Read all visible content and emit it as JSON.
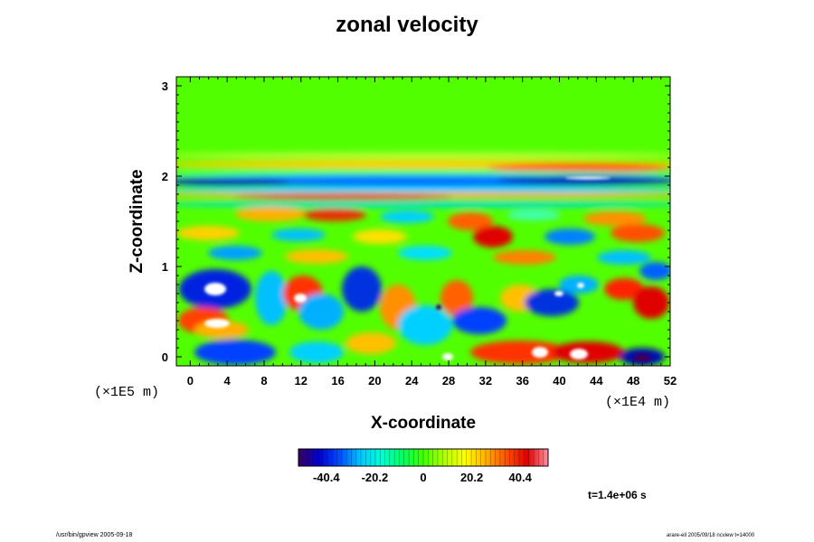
{
  "chart_data": {
    "type": "heatmap",
    "title": "zonal velocity",
    "xlabel": "X-coordinate",
    "ylabel": "Z-coordinate",
    "x_scale_note": "(×1E4 m)",
    "z_scale_note": "(×1E5 m)",
    "xlim": [
      -1.5,
      52
    ],
    "ylim": [
      -0.1,
      3.1
    ],
    "x_ticks": [
      "0",
      "4",
      "8",
      "12",
      "16",
      "20",
      "24",
      "28",
      "32",
      "36",
      "40",
      "44",
      "48",
      "52"
    ],
    "x_tick_values": [
      0,
      4,
      8,
      12,
      16,
      20,
      24,
      28,
      32,
      36,
      40,
      44,
      48,
      52
    ],
    "y_ticks": [
      "0",
      "1",
      "2",
      "3"
    ],
    "y_tick_values": [
      0,
      1,
      2,
      3
    ],
    "colorbar": {
      "range": [
        -52,
        52
      ],
      "tick_labels": [
        "-40.4",
        "-20.2",
        "0",
        "20.2",
        "40.4"
      ],
      "tick_values": [
        -40.4,
        -20.2,
        0,
        20.2,
        40.4
      ],
      "colors": [
        "#3a0060",
        "#0000d0",
        "#0050ff",
        "#00c8ff",
        "#00ffd0",
        "#00ff60",
        "#40ff00",
        "#b0ff00",
        "#ffff00",
        "#ffb000",
        "#ff5000",
        "#e00000",
        "#ff90a0"
      ]
    },
    "grid": false,
    "annotation": "t=1.4e+06 s"
  },
  "footer": {
    "left": "/usr/bin/gpview 2005-09-18",
    "right": "arare-ell 2005/09/18 ncview t=14000"
  }
}
